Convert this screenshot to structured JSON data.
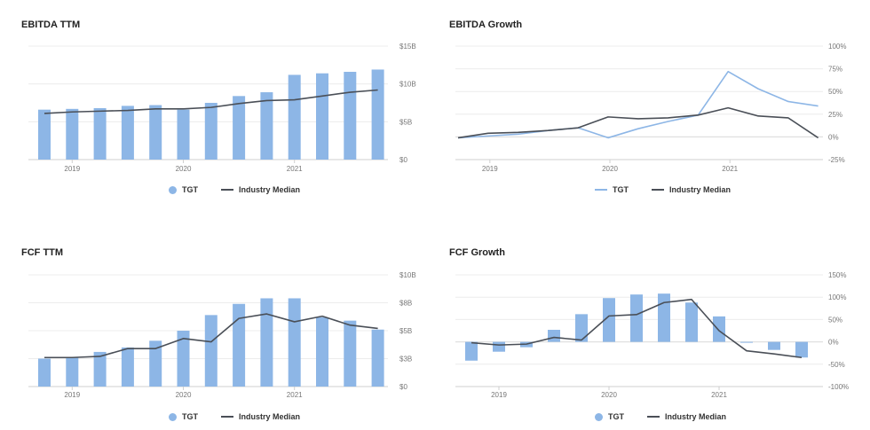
{
  "colors": {
    "bar": "#8db6e6",
    "industry": "#4a4f57",
    "grid": "#ececec"
  },
  "legend": {
    "tgt": "TGT",
    "industry": "Industry Median"
  },
  "chart_data": [
    {
      "id": "ebitda-ttm",
      "type": "bar",
      "title": "EBITDA TTM",
      "x_ticks": [
        "2019",
        "2020",
        "2021"
      ],
      "y_ticks": [
        "$15B",
        "$10B",
        "$5B",
        "$0"
      ],
      "ylim": [
        0,
        15
      ],
      "y_unit": "B USD",
      "series": [
        {
          "name": "TGT",
          "kind": "bar",
          "values": [
            6.6,
            6.7,
            6.8,
            7.1,
            7.2,
            6.6,
            7.5,
            8.4,
            8.9,
            11.2,
            11.4,
            11.6,
            11.9
          ]
        },
        {
          "name": "Industry Median",
          "kind": "line",
          "values": [
            6.1,
            6.3,
            6.4,
            6.5,
            6.7,
            6.7,
            6.9,
            7.4,
            7.8,
            7.9,
            8.4,
            8.9,
            9.2
          ]
        }
      ]
    },
    {
      "id": "ebitda-growth",
      "type": "line",
      "title": "EBITDA Growth",
      "x_ticks": [
        "2019",
        "2020",
        "2021"
      ],
      "y_ticks": [
        "100%",
        "75%",
        "50%",
        "25%",
        "0%",
        "-25%"
      ],
      "ylim": [
        -25,
        100
      ],
      "series": [
        {
          "name": "TGT",
          "kind": "line",
          "values": [
            -1,
            1,
            3,
            7,
            10,
            -1,
            9,
            17,
            24,
            72,
            53,
            39,
            34
          ]
        },
        {
          "name": "Industry Median",
          "kind": "line",
          "values": [
            -1,
            4,
            5,
            7,
            10,
            22,
            20,
            21,
            24,
            32,
            23,
            21,
            -1
          ]
        }
      ]
    },
    {
      "id": "fcf-ttm",
      "type": "bar",
      "title": "FCF TTM",
      "x_ticks": [
        "2019",
        "2020",
        "2021"
      ],
      "y_ticks": [
        "$10B",
        "$8B",
        "$5B",
        "$3B",
        "$0"
      ],
      "ylim": [
        0,
        10
      ],
      "y_unit": "B USD",
      "series": [
        {
          "name": "TGT",
          "kind": "bar",
          "values": [
            2.5,
            2.6,
            3.1,
            3.5,
            4.1,
            5.0,
            6.4,
            7.4,
            7.9,
            7.9,
            6.2,
            5.9,
            5.1
          ]
        },
        {
          "name": "Industry Median",
          "kind": "line",
          "values": [
            2.6,
            2.6,
            2.7,
            3.4,
            3.4,
            4.3,
            4.0,
            6.1,
            6.5,
            5.8,
            6.3,
            5.5,
            5.2
          ]
        }
      ]
    },
    {
      "id": "fcf-growth",
      "type": "bar",
      "title": "FCF Growth",
      "x_ticks": [
        "2019",
        "2020",
        "2021"
      ],
      "y_ticks": [
        "150%",
        "100%",
        "50%",
        "0%",
        "-50%",
        "-100%"
      ],
      "ylim": [
        -100,
        150
      ],
      "series": [
        {
          "name": "TGT",
          "kind": "bar",
          "values": [
            -42,
            -22,
            -12,
            27,
            62,
            98,
            106,
            108,
            88,
            57,
            -2,
            -18,
            -35
          ]
        },
        {
          "name": "Industry Median",
          "kind": "line",
          "values": [
            -2,
            -7,
            -5,
            10,
            4,
            58,
            61,
            88,
            95,
            25,
            -20,
            -27,
            -35
          ]
        }
      ]
    }
  ]
}
